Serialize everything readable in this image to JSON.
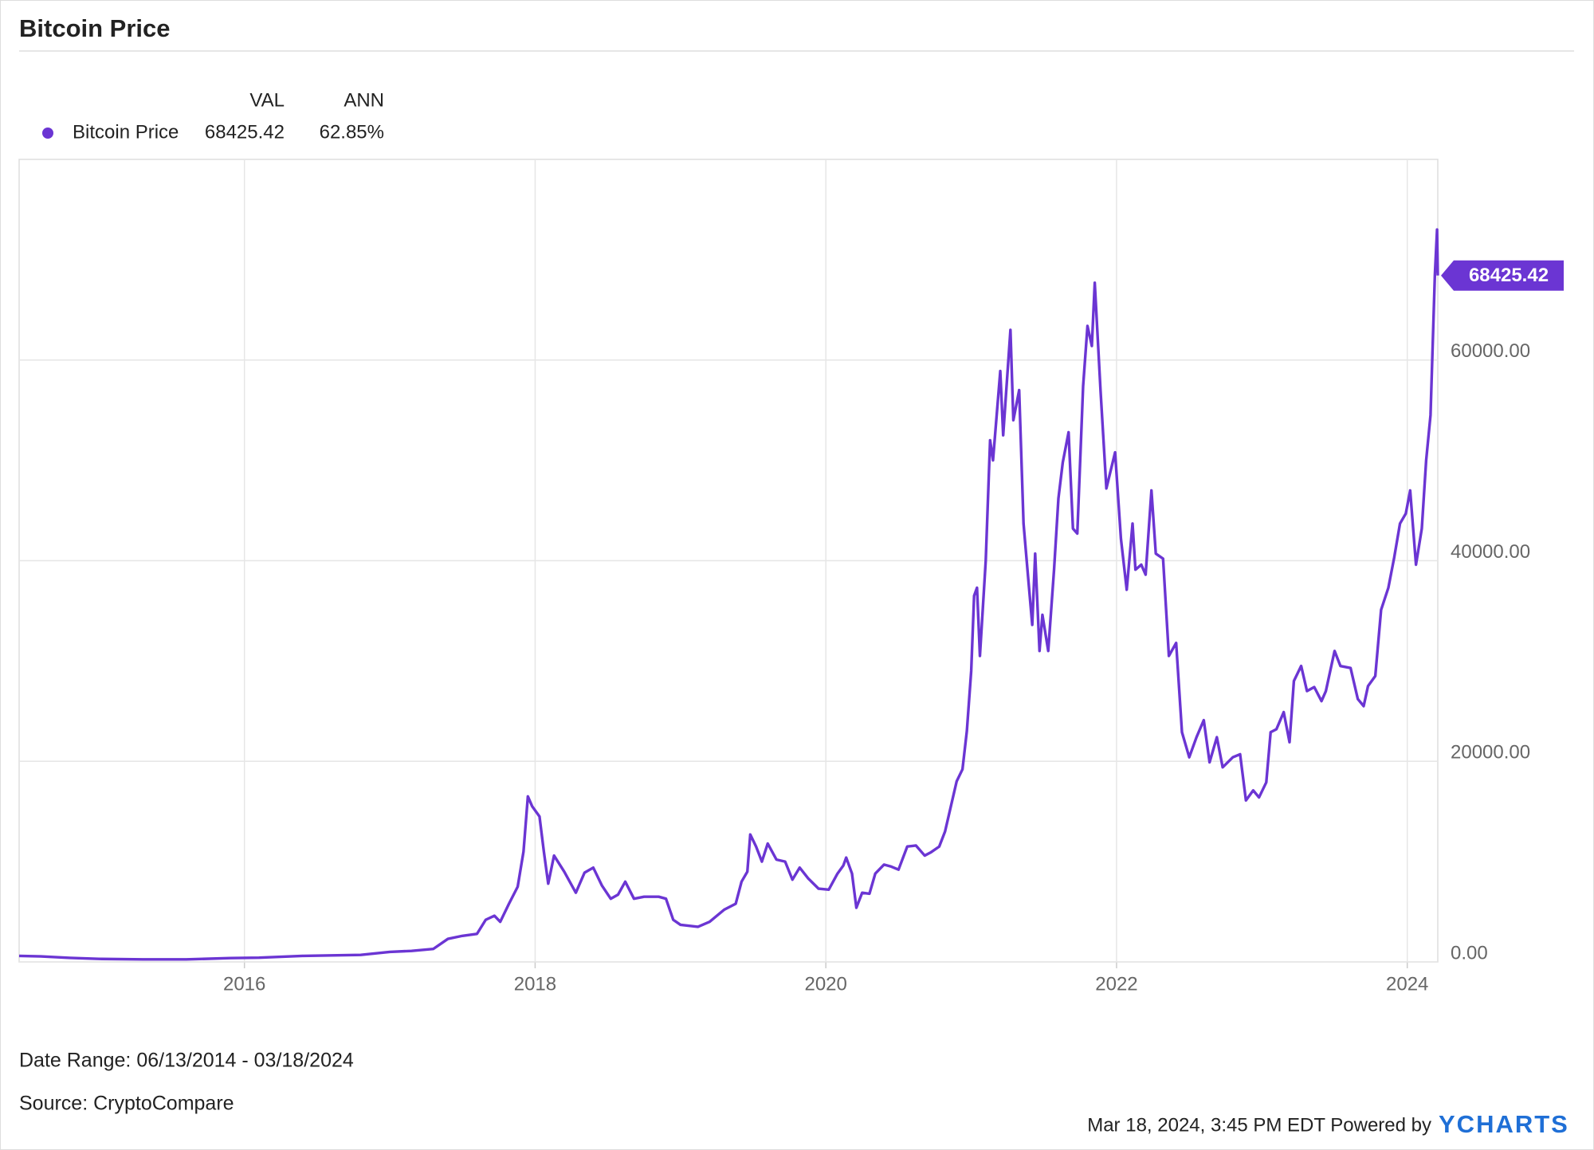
{
  "chart_data": {
    "type": "line",
    "title": "Bitcoin Price",
    "legend_columns": [
      "VAL",
      "ANN"
    ],
    "x": [
      2014.45,
      2014.6,
      2014.8,
      2015.0,
      2015.3,
      2015.6,
      2015.9,
      2016.1,
      2016.4,
      2016.6,
      2016.8,
      2017.0,
      2017.15,
      2017.3,
      2017.4,
      2017.5,
      2017.6,
      2017.66,
      2017.72,
      2017.76,
      2017.82,
      2017.88,
      2017.92,
      2017.95,
      2017.98,
      2018.03,
      2018.06,
      2018.09,
      2018.13,
      2018.2,
      2018.28,
      2018.34,
      2018.4,
      2018.46,
      2018.52,
      2018.57,
      2018.62,
      2018.68,
      2018.75,
      2018.85,
      2018.9,
      2018.95,
      2019.0,
      2019.12,
      2019.2,
      2019.3,
      2019.38,
      2019.42,
      2019.46,
      2019.48,
      2019.52,
      2019.56,
      2019.6,
      2019.66,
      2019.72,
      2019.77,
      2019.82,
      2019.88,
      2019.95,
      2020.02,
      2020.08,
      2020.12,
      2020.14,
      2020.18,
      2020.21,
      2020.25,
      2020.3,
      2020.34,
      2020.4,
      2020.45,
      2020.5,
      2020.56,
      2020.62,
      2020.68,
      2020.72,
      2020.78,
      2020.82,
      2020.86,
      2020.9,
      2020.94,
      2020.97,
      2021.0,
      2021.02,
      2021.04,
      2021.06,
      2021.1,
      2021.13,
      2021.15,
      2021.2,
      2021.22,
      2021.27,
      2021.29,
      2021.33,
      2021.36,
      2021.39,
      2021.42,
      2021.44,
      2021.47,
      2021.49,
      2021.53,
      2021.57,
      2021.6,
      2021.63,
      2021.67,
      2021.7,
      2021.73,
      2021.77,
      2021.8,
      2021.83,
      2021.85,
      2021.89,
      2021.93,
      2021.99,
      2022.03,
      2022.07,
      2022.11,
      2022.13,
      2022.17,
      2022.2,
      2022.24,
      2022.27,
      2022.32,
      2022.36,
      2022.41,
      2022.45,
      2022.5,
      2022.55,
      2022.6,
      2022.64,
      2022.69,
      2022.73,
      2022.8,
      2022.85,
      2022.89,
      2022.94,
      2022.98,
      2023.03,
      2023.06,
      2023.1,
      2023.15,
      2023.19,
      2023.22,
      2023.27,
      2023.31,
      2023.36,
      2023.41,
      2023.44,
      2023.5,
      2023.54,
      2023.61,
      2023.66,
      2023.7,
      2023.73,
      2023.78,
      2023.82,
      2023.87,
      2023.91,
      2023.95,
      2023.99,
      2024.02,
      2024.06,
      2024.1,
      2024.13,
      2024.16,
      2024.19,
      2024.205,
      2024.21
    ],
    "series": [
      {
        "name": "Bitcoin Price",
        "color": "#6b35d3",
        "annualized": "62.85%",
        "values": [
          600,
          550,
          400,
          300,
          250,
          250,
          380,
          420,
          600,
          650,
          700,
          1000,
          1100,
          1300,
          2300,
          2600,
          2800,
          4200,
          4600,
          4000,
          5800,
          7500,
          11000,
          16500,
          15500,
          14500,
          11000,
          7800,
          10600,
          9000,
          6900,
          8900,
          9400,
          7600,
          6300,
          6700,
          8000,
          6300,
          6500,
          6500,
          6300,
          4200,
          3700,
          3500,
          4000,
          5200,
          5800,
          8000,
          9000,
          12700,
          11500,
          10000,
          11800,
          10200,
          10000,
          8200,
          9400,
          8300,
          7300,
          7200,
          8800,
          9600,
          10400,
          8800,
          5400,
          6900,
          6800,
          8800,
          9700,
          9500,
          9200,
          11500,
          11600,
          10600,
          10900,
          11500,
          13000,
          15500,
          18000,
          19200,
          23000,
          29000,
          36500,
          37300,
          30500,
          40000,
          52000,
          50000,
          58900,
          52500,
          63000,
          54000,
          57000,
          43700,
          38600,
          33600,
          40700,
          31000,
          34600,
          31000,
          39100,
          46200,
          49800,
          52800,
          43200,
          42700,
          57400,
          63400,
          61400,
          67700,
          56900,
          47200,
          50800,
          42200,
          37100,
          43700,
          39100,
          39600,
          38600,
          47000,
          40700,
          40200,
          30500,
          31800,
          22900,
          20400,
          22400,
          24100,
          19900,
          22400,
          19400,
          20400,
          20700,
          16100,
          17100,
          16400,
          17900,
          22900,
          23200,
          24900,
          21900,
          28000,
          29500,
          27000,
          27400,
          26000,
          27000,
          31000,
          29500,
          29300,
          26200,
          25500,
          27500,
          28500,
          35100,
          37300,
          40300,
          43700,
          44700,
          47000,
          39600,
          43200,
          50000,
          54500,
          68500,
          73000,
          68425.42
        ]
      }
    ],
    "xlim": [
      2014.45,
      2024.21
    ],
    "xticks": [
      2016,
      2018,
      2020,
      2022,
      2024
    ],
    "ylim": [
      0,
      80000
    ],
    "yticks": [
      {
        "value": 0,
        "label": "0.00"
      },
      {
        "value": 20000,
        "label": "20000.00"
      },
      {
        "value": 40000,
        "label": "40000.00"
      },
      {
        "value": 60000,
        "label": "60000.00"
      }
    ],
    "grid": true,
    "date_range": "Date Range: 06/13/2014 - 03/18/2024",
    "source": "Source: CryptoCompare",
    "timestamp": "Mar 18, 2024, 3:45 PM EDT Powered by",
    "brand": "YCHARTS"
  }
}
